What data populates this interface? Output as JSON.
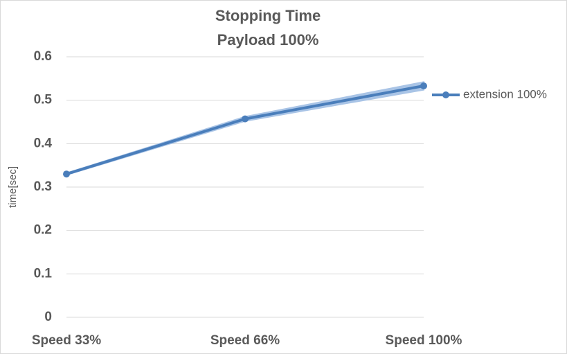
{
  "chart_data": {
    "type": "line",
    "title": "Stopping Time",
    "subtitle": "Payload 100%",
    "y_label": "time[sec]",
    "categories": [
      "Speed 33%",
      "Speed 66%",
      "Speed 100%"
    ],
    "series": [
      {
        "name": "extension 100%",
        "color": "#4a7ebb",
        "band_color": "#a9c4e6",
        "values": [
          0.33,
          0.457,
          0.533
        ],
        "errors": [
          0.002,
          0.005,
          0.009
        ]
      }
    ],
    "ylim": [
      0,
      0.6
    ],
    "yticks": [
      0,
      0.1,
      0.2,
      0.3,
      0.4,
      0.5,
      0.6
    ],
    "grid": true,
    "legend": "right"
  }
}
